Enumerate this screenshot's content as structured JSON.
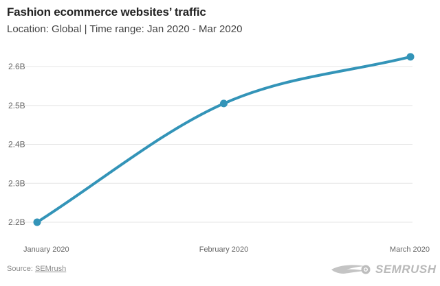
{
  "title": "Fashion ecommerce websites’ traffic",
  "subtitle": "Location: Global | Time range: Jan 2020 - Mar 2020",
  "footer": {
    "source_label": "Source:",
    "source_link": "SEMrush",
    "logo_text": "SEMRUSH"
  },
  "colors": {
    "line": "#3394b8",
    "grid": "#e6e6e6",
    "tick_text": "#666666"
  },
  "chart_data": {
    "type": "line",
    "categories": [
      "January 2020",
      "February 2020",
      "March 2020"
    ],
    "series": [
      {
        "values": [
          2.2,
          2.505,
          2.625
        ]
      }
    ],
    "y_ticks": [
      2.2,
      2.3,
      2.4,
      2.5,
      2.6
    ],
    "y_tick_labels": [
      "2.2B",
      "2.3B",
      "2.4B",
      "2.5B",
      "2.6B"
    ],
    "ylim": [
      2.2,
      2.6
    ],
    "grid": true,
    "xlabel": "",
    "ylabel": ""
  }
}
